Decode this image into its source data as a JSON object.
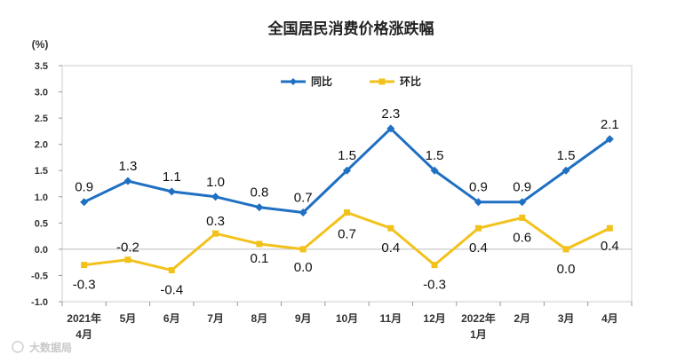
{
  "chart_data": {
    "type": "line",
    "title": "全国居民消费价格涨跌幅",
    "unit_label": "(%)",
    "categories": [
      "2021年4月",
      "5月",
      "6月",
      "7月",
      "8月",
      "9月",
      "10月",
      "11月",
      "12月",
      "2022年1月",
      "2月",
      "3月",
      "4月"
    ],
    "category_lines": [
      [
        "2021年",
        "4月"
      ],
      [
        "5月"
      ],
      [
        "6月"
      ],
      [
        "7月"
      ],
      [
        "8月"
      ],
      [
        "9月"
      ],
      [
        "10月"
      ],
      [
        "11月"
      ],
      [
        "12月"
      ],
      [
        "2022年",
        "1月"
      ],
      [
        "2月"
      ],
      [
        "3月"
      ],
      [
        "4月"
      ]
    ],
    "yticks": [
      "-1.0",
      "-0.5",
      "0.0",
      "0.5",
      "1.0",
      "1.5",
      "2.0",
      "2.5",
      "3.0",
      "3.5"
    ],
    "ylim": [
      -1.0,
      3.5
    ],
    "legend_position": "top-center",
    "grid": false,
    "series": [
      {
        "name": "同比",
        "color": "#1f6fc2",
        "marker": "diamond",
        "values": [
          0.9,
          1.3,
          1.1,
          1.0,
          0.8,
          0.7,
          1.5,
          2.3,
          1.5,
          0.9,
          0.9,
          1.5,
          2.1
        ],
        "labels": [
          "0.9",
          "1.3",
          "1.1",
          "1.0",
          "0.8",
          "0.7",
          "1.5",
          "2.3",
          "1.5",
          "0.9",
          "0.9",
          "1.5",
          "2.1"
        ]
      },
      {
        "name": "环比",
        "color": "#f2c21b",
        "marker": "square",
        "values": [
          -0.3,
          -0.2,
          -0.4,
          0.3,
          0.1,
          0.0,
          0.7,
          0.4,
          -0.3,
          0.4,
          0.6,
          0.0,
          0.4
        ],
        "labels": [
          "-0.3",
          "-0.2",
          "-0.4",
          "0.3",
          "0.1",
          "0.0",
          "0.7",
          "0.4",
          "-0.3",
          "0.4",
          "0.6",
          "0.0",
          "0.4"
        ]
      }
    ]
  },
  "watermark": "大数据局"
}
